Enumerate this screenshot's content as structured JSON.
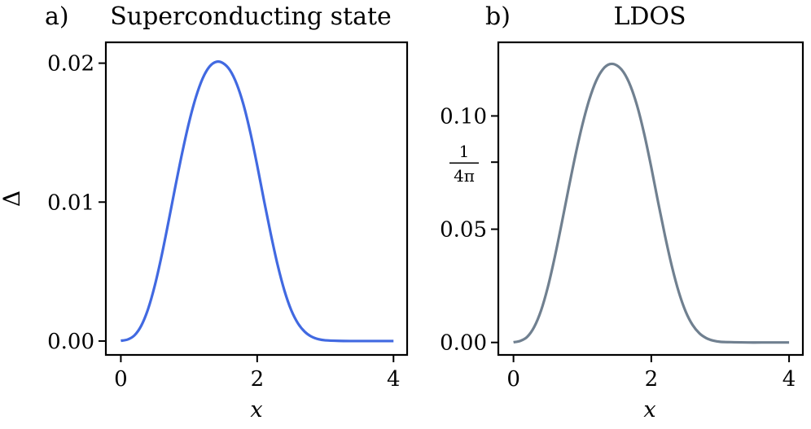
{
  "chart_data": [
    {
      "type": "line",
      "panel_label": "a)",
      "title": "Superconducting state",
      "xlabel": "x",
      "ylabel": "Δ",
      "xlim": [
        -0.22,
        4.2
      ],
      "ylim": [
        -0.001,
        0.0215
      ],
      "x_ticks": [
        0,
        2,
        4
      ],
      "x_tick_labels": [
        "0",
        "2",
        "4"
      ],
      "y_ticks": [
        0.0,
        0.01,
        0.02
      ],
      "y_tick_labels": [
        "0.00",
        "0.01",
        "0.02"
      ],
      "grid": false,
      "series": [
        {
          "color": "#4169e1",
          "x": [
            0,
            0.1,
            0.2,
            0.3,
            0.4,
            0.5,
            0.6,
            0.7,
            0.8,
            0.9,
            1.0,
            1.1,
            1.2,
            1.3,
            1.4,
            1.5,
            1.6,
            1.7,
            1.8,
            1.9,
            2.0,
            2.1,
            2.2,
            2.3,
            2.4,
            2.5,
            2.6,
            2.7,
            2.8,
            2.9,
            3.0,
            3.2,
            3.4,
            3.6,
            3.8,
            4.0
          ],
          "values": [
            2e-05,
            0.00011,
            0.00041,
            0.00111,
            0.00231,
            0.00403,
            0.00618,
            0.00861,
            0.01113,
            0.01355,
            0.01573,
            0.01754,
            0.0189,
            0.01975,
            0.0201,
            0.02,
            0.0195,
            0.0185,
            0.017,
            0.015,
            0.01265,
            0.01012,
            0.0077,
            0.00548,
            0.00363,
            0.00222,
            0.00126,
            0.00066,
            0.00031,
            0.00013,
            5e-05,
            1e-05,
            0.0,
            0.0,
            0.0,
            0.0
          ]
        }
      ]
    },
    {
      "type": "line",
      "panel_label": "b)",
      "title": "LDOS",
      "xlabel": "x",
      "ylabel": "",
      "xlim": [
        -0.22,
        4.2
      ],
      "ylim": [
        -0.0055,
        0.1325
      ],
      "x_ticks": [
        0,
        2,
        4
      ],
      "x_tick_labels": [
        "0",
        "2",
        "4"
      ],
      "y_ticks": [
        0.0,
        0.05,
        0.0796,
        0.1
      ],
      "y_tick_labels": [
        "0.00",
        "0.05",
        "1/4π",
        "0.10"
      ],
      "grid": false,
      "series": [
        {
          "color": "#708090",
          "x": [
            0,
            0.1,
            0.2,
            0.3,
            0.4,
            0.5,
            0.6,
            0.7,
            0.8,
            0.9,
            1.0,
            1.1,
            1.2,
            1.3,
            1.4,
            1.5,
            1.6,
            1.7,
            1.8,
            1.9,
            2.0,
            2.1,
            2.2,
            2.3,
            2.4,
            2.5,
            2.6,
            2.7,
            2.8,
            2.9,
            3.0,
            3.2,
            3.4,
            3.6,
            3.8,
            4.0
          ],
          "values": [
            0.0001,
            0.0007,
            0.0025,
            0.0068,
            0.0141,
            0.0246,
            0.0378,
            0.0526,
            0.068,
            0.0828,
            0.0961,
            0.1072,
            0.1155,
            0.1207,
            0.1229,
            0.1223,
            0.1192,
            0.1131,
            0.1039,
            0.0917,
            0.0773,
            0.0618,
            0.047,
            0.0335,
            0.0222,
            0.0136,
            0.0077,
            0.004,
            0.0019,
            0.0008,
            0.0003,
            0.0001,
            0.0,
            0.0,
            0.0,
            0.0
          ]
        }
      ]
    }
  ]
}
